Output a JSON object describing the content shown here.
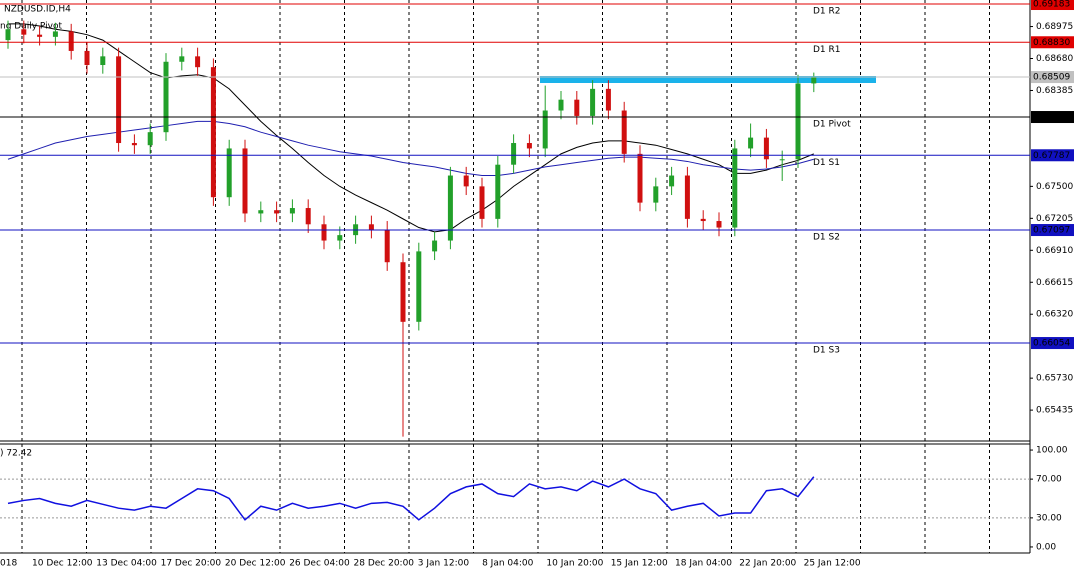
{
  "chart_data": [
    {
      "type": "candlestick",
      "title": "NZDUSD.ID,H4",
      "subtitle": "ng Daily Pivot",
      "ylim": [
        0.6515,
        0.6922
      ],
      "yticks": [
        {
          "value": 0.68975,
          "label": "0.68975"
        },
        {
          "value": 0.6868,
          "label": "0.68680"
        },
        {
          "value": 0.68385,
          "label": "0.68385"
        },
        {
          "value": 0.675,
          "label": "0.67500"
        },
        {
          "value": 0.67205,
          "label": "0.67205"
        },
        {
          "value": 0.6691,
          "label": "0.66910"
        },
        {
          "value": 0.66615,
          "label": "0.66615"
        },
        {
          "value": 0.6632,
          "label": "0.66320"
        },
        {
          "value": 0.6573,
          "label": "0.65730"
        },
        {
          "value": 0.65435,
          "label": "0.65435"
        }
      ],
      "x_labels": [
        "018",
        "10 Dec 12:00",
        "13 Dec 04:00",
        "17 Dec 20:00",
        "20 Dec 12:00",
        "26 Dec 04:00",
        "28 Dec 20:00",
        "3 Jan 12:00",
        "8 Jan 04:00",
        "10 Jan 20:00",
        "15 Jan 12:00",
        "18 Jan 04:00",
        "22 Jan 20:00",
        "25 Jan 12:00"
      ],
      "up_color": "#22a02a",
      "down_color": "#d01010",
      "ohlc": [
        [
          0.6885,
          0.6903,
          0.6877,
          0.6895
        ],
        [
          0.6895,
          0.6903,
          0.6882,
          0.689
        ],
        [
          0.689,
          0.6898,
          0.688,
          0.6888
        ],
        [
          0.6888,
          0.6901,
          0.688,
          0.6893
        ],
        [
          0.6893,
          0.69,
          0.6867,
          0.6875
        ],
        [
          0.6875,
          0.6883,
          0.6854,
          0.6862
        ],
        [
          0.6862,
          0.6878,
          0.6854,
          0.687
        ],
        [
          0.687,
          0.6878,
          0.6782,
          0.679
        ],
        [
          0.679,
          0.6798,
          0.678,
          0.6788
        ],
        [
          0.6788,
          0.6808,
          0.678,
          0.68
        ],
        [
          0.68,
          0.6873,
          0.6792,
          0.6865
        ],
        [
          0.6865,
          0.6878,
          0.6857,
          0.687
        ],
        [
          0.687,
          0.6878,
          0.6852,
          0.686
        ],
        [
          0.686,
          0.6868,
          0.6732,
          0.674
        ],
        [
          0.674,
          0.6793,
          0.6732,
          0.6785
        ],
        [
          0.6785,
          0.6793,
          0.6717,
          0.6725
        ],
        [
          0.6725,
          0.6736,
          0.6717,
          0.6728
        ],
        [
          0.6728,
          0.6736,
          0.6717,
          0.6725
        ],
        [
          0.6725,
          0.6738,
          0.6717,
          0.673
        ],
        [
          0.673,
          0.6738,
          0.6707,
          0.6715
        ],
        [
          0.6715,
          0.6723,
          0.6692,
          0.67
        ],
        [
          0.67,
          0.6713,
          0.6692,
          0.6705
        ],
        [
          0.6705,
          0.6723,
          0.6697,
          0.6715
        ],
        [
          0.6715,
          0.6723,
          0.6702,
          0.671
        ],
        [
          0.671,
          0.6718,
          0.6672,
          0.668
        ],
        [
          0.668,
          0.6688,
          0.6519,
          0.6625
        ],
        [
          0.6625,
          0.6698,
          0.6617,
          0.669
        ],
        [
          0.669,
          0.6708,
          0.6682,
          0.67
        ],
        [
          0.67,
          0.6768,
          0.6692,
          0.676
        ],
        [
          0.676,
          0.6768,
          0.6742,
          0.675
        ],
        [
          0.675,
          0.6758,
          0.6712,
          0.672
        ],
        [
          0.672,
          0.6778,
          0.6712,
          0.677
        ],
        [
          0.677,
          0.6798,
          0.6762,
          0.679
        ],
        [
          0.679,
          0.6798,
          0.6777,
          0.6785
        ],
        [
          0.6785,
          0.6843,
          0.6777,
          0.682
        ],
        [
          0.682,
          0.6838,
          0.6812,
          0.683
        ],
        [
          0.683,
          0.6838,
          0.6807,
          0.6815
        ],
        [
          0.6815,
          0.6848,
          0.6807,
          0.684
        ],
        [
          0.684,
          0.6848,
          0.6812,
          0.682
        ],
        [
          0.682,
          0.6828,
          0.6772,
          0.678
        ],
        [
          0.678,
          0.6788,
          0.6727,
          0.6735
        ],
        [
          0.6735,
          0.6758,
          0.6727,
          0.675
        ],
        [
          0.675,
          0.6768,
          0.6742,
          0.676
        ],
        [
          0.676,
          0.6768,
          0.6712,
          0.672
        ],
        [
          0.672,
          0.6728,
          0.671,
          0.6718
        ],
        [
          0.6718,
          0.6726,
          0.6704,
          0.6712
        ],
        [
          0.6712,
          0.6793,
          0.6704,
          0.6785
        ],
        [
          0.6785,
          0.6808,
          0.6777,
          0.6795
        ],
        [
          0.6795,
          0.6803,
          0.6767,
          0.6775
        ],
        [
          0.6775,
          0.6783,
          0.6755,
          0.6775
        ],
        [
          0.6775,
          0.6853,
          0.6767,
          0.6845
        ],
        [
          0.6845,
          0.6855,
          0.6837,
          0.6851
        ]
      ],
      "series": [
        {
          "color": "#000000",
          "values": [
            0.69,
            0.69,
            0.6898,
            0.6895,
            0.6893,
            0.689,
            0.6885,
            0.6875,
            0.6865,
            0.6855,
            0.685,
            0.6852,
            0.6853,
            0.685,
            0.684,
            0.6825,
            0.681,
            0.6797,
            0.6785,
            0.6772,
            0.676,
            0.675,
            0.6742,
            0.6735,
            0.6728,
            0.672,
            0.6712,
            0.6708,
            0.671,
            0.672,
            0.6728,
            0.6738,
            0.675,
            0.676,
            0.677,
            0.678,
            0.6786,
            0.679,
            0.6792,
            0.6792,
            0.679,
            0.6788,
            0.6784,
            0.678,
            0.6775,
            0.677,
            0.6762,
            0.6762,
            0.6765,
            0.677,
            0.6774,
            0.678
          ]
        },
        {
          "color": "#1f1fb0",
          "values": [
            0.6775,
            0.678,
            0.6785,
            0.679,
            0.6793,
            0.6796,
            0.6798,
            0.68,
            0.6802,
            0.6804,
            0.6806,
            0.6808,
            0.681,
            0.681,
            0.6808,
            0.6805,
            0.68,
            0.6796,
            0.6792,
            0.6788,
            0.6785,
            0.6782,
            0.678,
            0.6778,
            0.6775,
            0.6772,
            0.677,
            0.6768,
            0.6765,
            0.6762,
            0.676,
            0.676,
            0.6762,
            0.6765,
            0.6768,
            0.677,
            0.6772,
            0.6774,
            0.6776,
            0.6777,
            0.6777,
            0.6776,
            0.6775,
            0.6773,
            0.677,
            0.6768,
            0.6766,
            0.6765,
            0.6766,
            0.6768,
            0.6771,
            0.6775
          ]
        }
      ],
      "levels": [
        {
          "name": "D1 R2",
          "value": 0.69183,
          "label": "0.69183",
          "color": "#e00000"
        },
        {
          "name": "D1 R1",
          "value": 0.6883,
          "label": "0.68830",
          "color": "#e00000"
        },
        {
          "value": 0.68509,
          "label": "0.68509",
          "color": "#c0c0c0"
        },
        {
          "name": "D1 Pivot",
          "value": 0.6814,
          "label": "0.68140",
          "color": "#000000"
        },
        {
          "name": "D1 S1",
          "value": 0.67787,
          "label": "0.67787",
          "color": "#1010c0"
        },
        {
          "name": "D1 S2",
          "value": 0.67097,
          "label": "0.67097",
          "color": "#1010c0"
        },
        {
          "name": "D1 S3",
          "value": 0.66054,
          "label": "0.66054",
          "color": "#1010c0"
        }
      ]
    },
    {
      "type": "line",
      "title": ") 72.42",
      "color": "#1010e0",
      "ylim": [
        -6.25,
        106.25
      ],
      "yticks": [
        {
          "value": 100,
          "label": "100.00"
        },
        {
          "value": 70,
          "label": "70.00"
        },
        {
          "value": 30,
          "label": "30.00"
        },
        {
          "value": 0,
          "label": "0.00"
        }
      ],
      "levels": [
        70,
        30
      ],
      "values": [
        45,
        48,
        50,
        45,
        42,
        48,
        44,
        40,
        38,
        42,
        40,
        50,
        60,
        58,
        50,
        28,
        42,
        38,
        45,
        40,
        42,
        45,
        40,
        45,
        46,
        42,
        28,
        40,
        55,
        62,
        65,
        55,
        52,
        65,
        60,
        62,
        58,
        68,
        62,
        70,
        60,
        55,
        38,
        42,
        45,
        32,
        35,
        35,
        58,
        60,
        52,
        72.42
      ]
    }
  ]
}
